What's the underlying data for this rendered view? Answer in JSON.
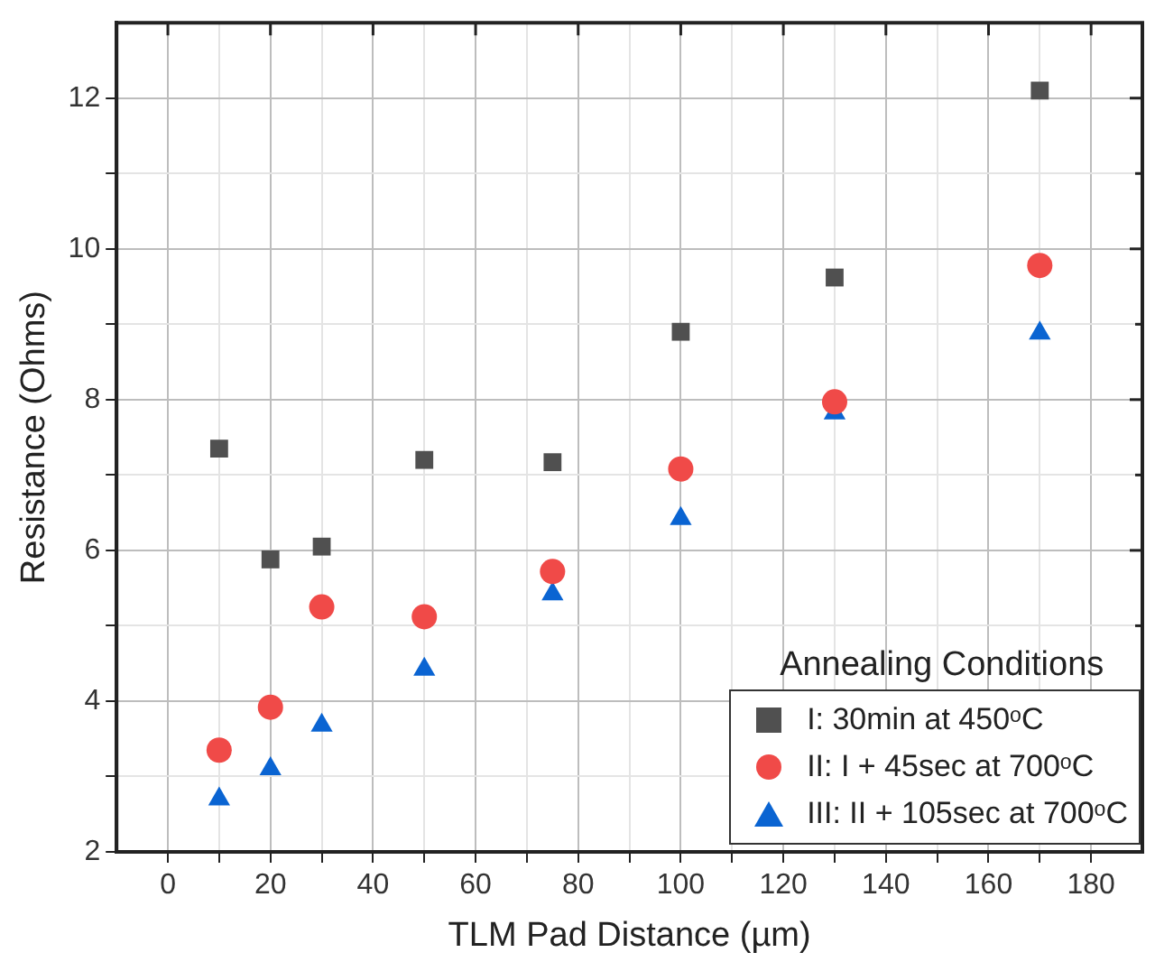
{
  "chart_data": {
    "type": "scatter",
    "xlabel": "TLM Pad Distance (µm)",
    "ylabel": "Resistance (Ohms)",
    "legend_title": "Annealing Conditions",
    "x": [
      10,
      20,
      30,
      50,
      75,
      100,
      130,
      170
    ],
    "series": [
      {
        "name": "I: 30min at 450ᵒC",
        "color": "#505050",
        "marker": "square",
        "values": [
          7.35,
          5.88,
          6.05,
          7.2,
          7.17,
          8.9,
          9.62,
          12.1
        ]
      },
      {
        "name": "II: I + 45sec at 700ᵒC",
        "color": "#f04a48",
        "marker": "circle",
        "values": [
          3.35,
          3.92,
          5.25,
          5.12,
          5.72,
          7.08,
          7.97,
          9.78
        ]
      },
      {
        "name": "III: II + 105sec at 700ᵒC",
        "color": "#0a64d2",
        "marker": "triangle",
        "values": [
          2.7,
          3.1,
          3.68,
          4.42,
          5.42,
          6.42,
          7.82,
          8.88
        ]
      }
    ],
    "xlim": [
      -10,
      190
    ],
    "ylim": [
      2,
      13
    ],
    "xticks": [
      0,
      {
        "value": 10,
        "label": null
      },
      20,
      {
        "value": 30,
        "label": null
      },
      40,
      {
        "value": 50,
        "label": null
      },
      60,
      {
        "value": 70,
        "label": null
      },
      80,
      {
        "value": 90,
        "label": null
      },
      100,
      {
        "value": 110,
        "label": null
      },
      120,
      {
        "value": 130,
        "label": null
      },
      140,
      {
        "value": 150,
        "label": null
      },
      160,
      {
        "value": 170,
        "label": null
      },
      180
    ],
    "yticks": [
      2,
      {
        "value": 3,
        "label": null
      },
      4,
      {
        "value": 5,
        "label": null
      },
      6,
      {
        "value": 7,
        "label": null
      },
      8,
      {
        "value": 9,
        "label": null
      },
      10,
      {
        "value": 11,
        "label": null
      },
      12
    ],
    "grid": true,
    "legend": "bottom right"
  }
}
